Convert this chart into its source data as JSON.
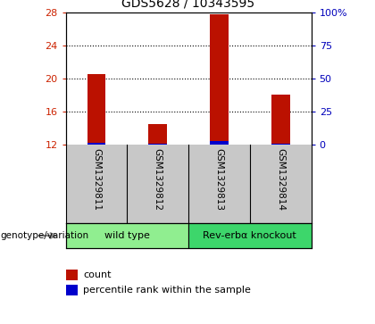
{
  "title": "GDS5628 / 10343595",
  "samples": [
    "GSM1329811",
    "GSM1329812",
    "GSM1329813",
    "GSM1329814"
  ],
  "groups": [
    {
      "label": "wild type",
      "indices": [
        0,
        1
      ],
      "color": "#90EE90"
    },
    {
      "label": "Rev-erbα knockout",
      "indices": [
        2,
        3
      ],
      "color": "#3DD66B"
    }
  ],
  "count_values": [
    20.5,
    14.5,
    27.8,
    18.0
  ],
  "percentile_values": [
    1.5,
    0.5,
    2.5,
    1.0
  ],
  "ymin": 12,
  "ymax": 28,
  "yticks": [
    12,
    16,
    20,
    24,
    28
  ],
  "right_yticks": [
    0,
    25,
    50,
    75,
    100
  ],
  "right_ytick_labels": [
    "0",
    "25",
    "50",
    "75",
    "100%"
  ],
  "red_color": "#BB1100",
  "blue_color": "#0000CC",
  "left_tick_color": "#CC2200",
  "right_tick_color": "#0000BB",
  "legend_count_label": "count",
  "legend_percentile_label": "percentile rank within the sample",
  "group_label_prefix": "genotype/variation",
  "sample_bg_color": "#C8C8C8",
  "plot_bg": "#FFFFFF",
  "bar_width": 0.3
}
